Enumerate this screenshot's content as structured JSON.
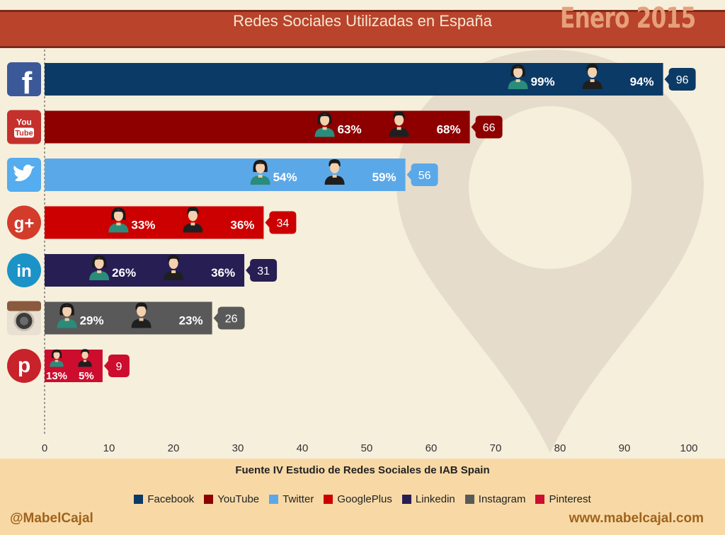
{
  "header": {
    "title": "Redes Sociales Utilizadas en España",
    "date": "Enero 2015"
  },
  "footer": {
    "source": "Fuente IV Estudio de Redes Sociales de IAB Spain",
    "credit_left": "@MabelCajal",
    "credit_right": "www.mabelcajal.com"
  },
  "colors": {
    "Facebook": "#0b3a66",
    "YouTube": "#8e0000",
    "Twitter": "#5ba8e8",
    "GooglePlus": "#cc0000",
    "Linkedin": "#271e54",
    "Instagram": "#595959",
    "Pinterest": "#cc0d2e"
  },
  "chart_data": {
    "type": "bar",
    "orientation": "horizontal",
    "categories": [
      "Facebook",
      "YouTube",
      "Twitter",
      "GooglePlus",
      "Linkedin",
      "Instagram",
      "Pinterest"
    ],
    "values": [
      96,
      66,
      56,
      34,
      31,
      26,
      9
    ],
    "female_pct": [
      "99%",
      "63%",
      "54%",
      "33%",
      "26%",
      "29%",
      "13%"
    ],
    "male_pct": [
      "94%",
      "68%",
      "59%",
      "36%",
      "36%",
      "23%",
      "5%"
    ],
    "xlim": [
      0,
      100
    ],
    "xticks": [
      0,
      10,
      20,
      30,
      40,
      50,
      60,
      70,
      80,
      90,
      100
    ],
    "grid": false,
    "legend": [
      "Facebook",
      "YouTube",
      "Twitter",
      "GooglePlus",
      "Linkedin",
      "Instagram",
      "Pinterest"
    ],
    "legend_position": "bottom"
  }
}
